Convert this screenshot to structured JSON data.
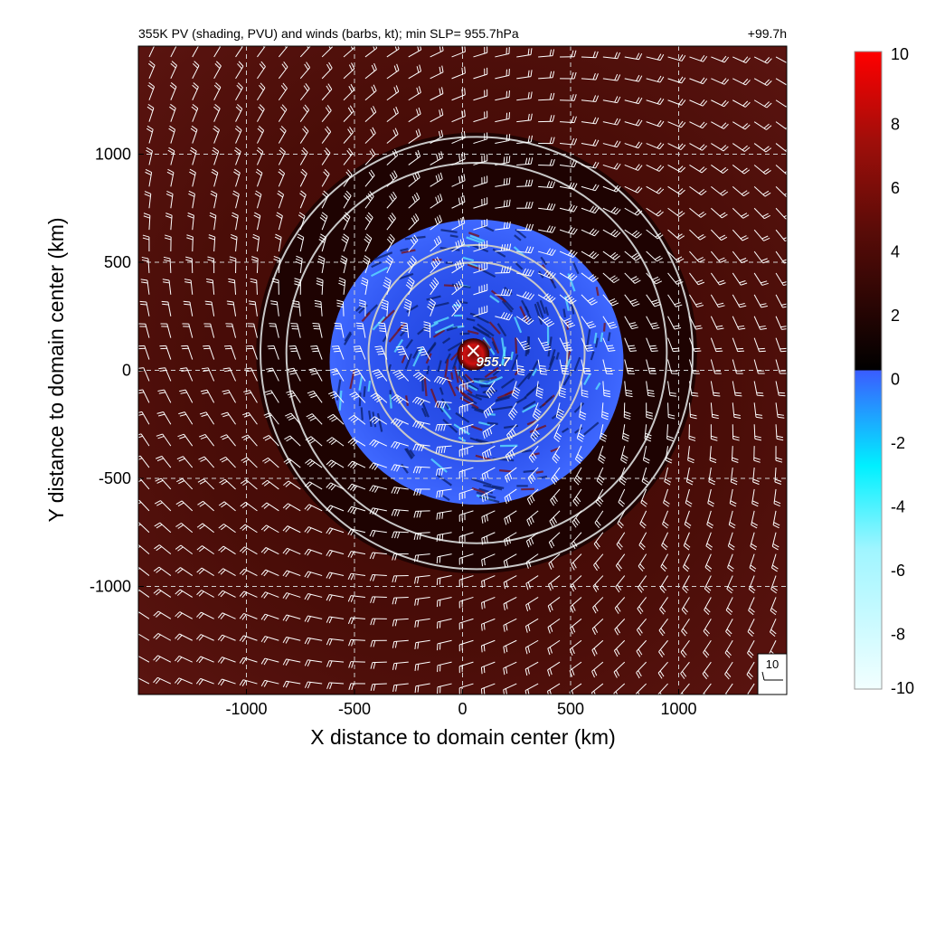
{
  "figure": {
    "title_left": "355K PV (shading, PVU) and winds (barbs, kt); min SLP=  955.7hPa",
    "title_right": "+99.7h",
    "center_label": "955.7",
    "reference_barb_label": "10"
  },
  "colors": {
    "positive_low": "#000000",
    "positive_mid": "#6e0f0a",
    "positive_high": "#ff0000",
    "negative_low": "#3355ff",
    "negative_mid": "#00e5ff",
    "negative_high": "#f0ffff",
    "background_field": "#4a0d08",
    "barb": "#ffffff",
    "range_rings": "#c8c8c8",
    "grid": "#d0d0d0"
  },
  "chart_data": {
    "type": "heatmap",
    "title": "355K PV (shading, PVU) and winds (barbs, kt); min SLP=  955.7hPa",
    "time_label": "+99.7h",
    "xlabel": "X distance to domain center (km)",
    "ylabel": "Y distance to domain center (km)",
    "xlim": [
      -1500,
      1500
    ],
    "ylim": [
      -1500,
      1500
    ],
    "x_ticks": [
      -1000,
      -500,
      0,
      500,
      1000
    ],
    "y_ticks": [
      -1000,
      -500,
      0,
      500,
      1000
    ],
    "x_tick_labels": [
      "-1000",
      "-500",
      "0",
      "500",
      "1000"
    ],
    "y_tick_labels": [
      "-1000",
      "-500",
      "0",
      "500",
      "1000"
    ],
    "grid": true,
    "colorbar": {
      "variable": "PV (PVU)",
      "range": [
        -10,
        10
      ],
      "ticks": [
        10,
        8,
        6,
        4,
        2,
        0,
        -2,
        -4,
        -6,
        -8,
        -10
      ],
      "tick_labels": [
        "10",
        "8",
        "6",
        "4",
        "2",
        "0",
        "-2",
        "-4",
        "-6",
        "-8",
        "-10"
      ]
    },
    "storm_center": {
      "x": 50,
      "y": 90,
      "min_slp_hpa": 955.7,
      "label": "955.7"
    },
    "range_rings_km": [
      420,
      500,
      880,
      1000
    ],
    "range_ring_center": {
      "x": 65,
      "y": 80
    },
    "negative_pv_region_radius_km": 680,
    "reference_barb": {
      "speed_kt": 10,
      "location": "bottom-right"
    },
    "wind_barb_spacing_km": 100
  }
}
